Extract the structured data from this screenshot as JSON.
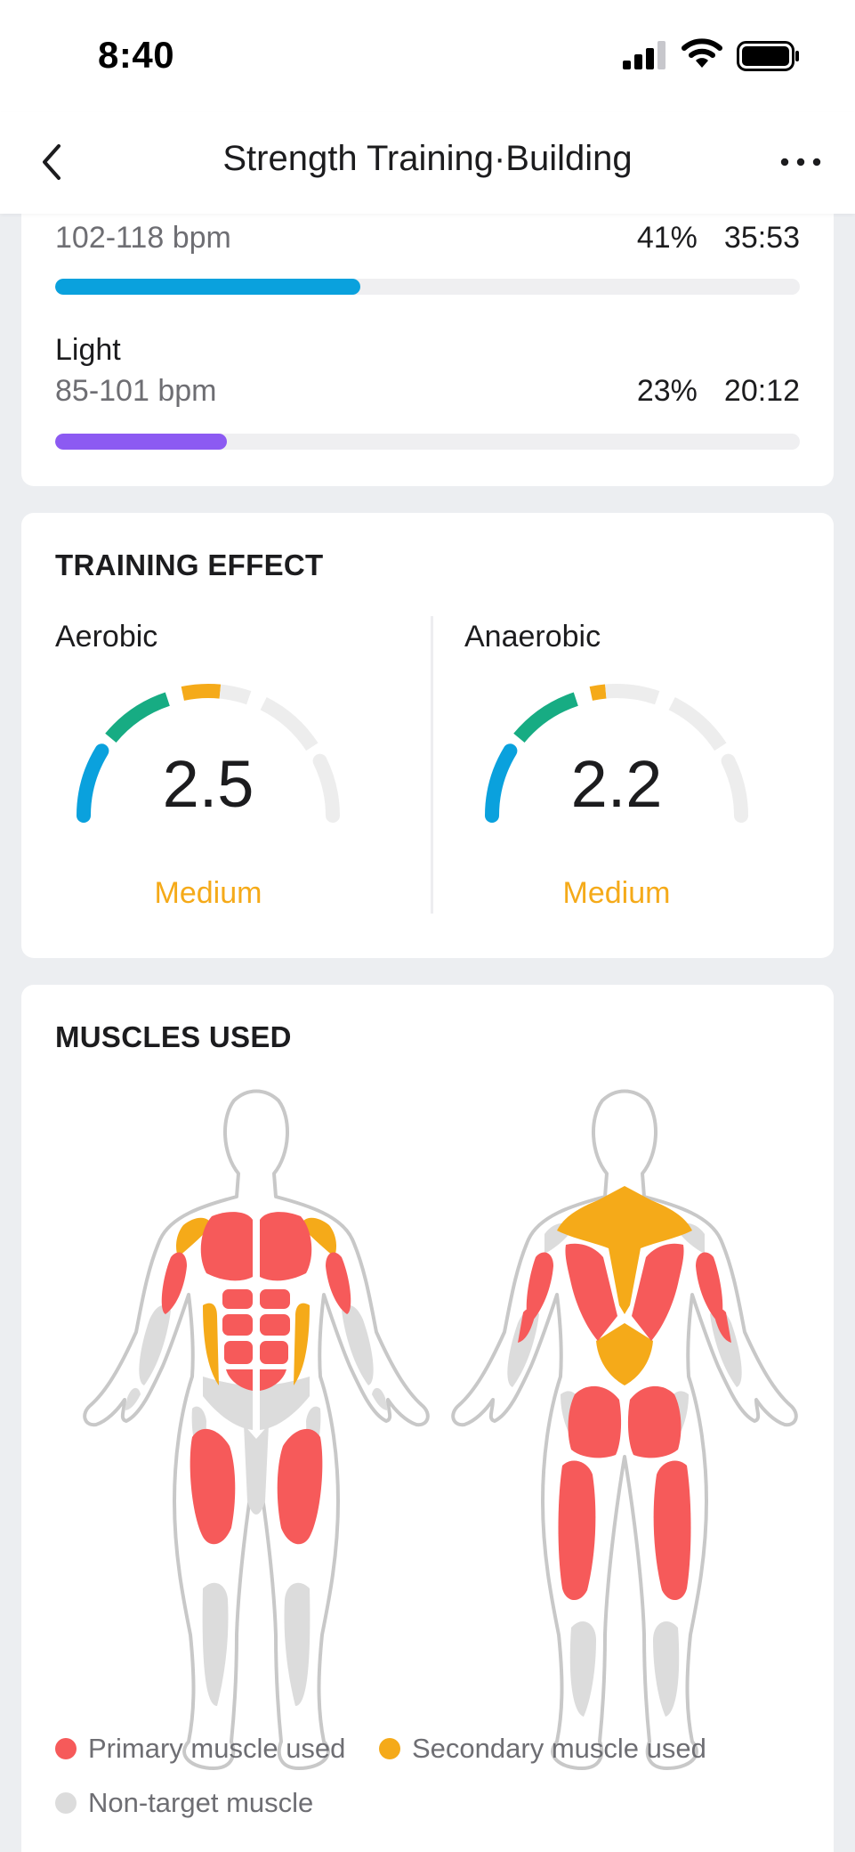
{
  "status_bar": {
    "time": "8:40"
  },
  "nav": {
    "title": "Strength Training·Building"
  },
  "heart_zones": [
    {
      "name": "",
      "range": "102-118 bpm",
      "percent": "41%",
      "duration": "35:53",
      "fraction": 0.41,
      "color": "#0aa1dd"
    },
    {
      "name": "Light",
      "range": "85-101 bpm",
      "percent": "23%",
      "duration": "20:12",
      "fraction": 0.23,
      "color": "#8c5af2"
    }
  ],
  "training_effect": {
    "title": "TRAINING EFFECT",
    "aerobic": {
      "label": "Aerobic",
      "value": "2.5",
      "level": "Medium"
    },
    "anaerobic": {
      "label": "Anaerobic",
      "value": "2.2",
      "level": "Medium"
    }
  },
  "muscles": {
    "title": "MUSCLES USED",
    "legend": {
      "primary": "Primary muscle used",
      "secondary": "Secondary muscle used",
      "nontarget": "Non-target muscle"
    }
  },
  "colors": {
    "primary_muscle": "#f65a5a",
    "secondary_muscle": "#f5aa19",
    "nontarget_muscle": "#dcdcdc",
    "gauge_blue": "#0aa1dd",
    "gauge_green": "#17ac83",
    "gauge_orange": "#f5aa19",
    "gauge_track": "#ededed"
  },
  "icons": {
    "back": "chevron-left-icon",
    "more": "more-horizontal-icon",
    "signal": "cellular-signal-icon",
    "wifi": "wifi-icon",
    "battery": "battery-icon"
  }
}
